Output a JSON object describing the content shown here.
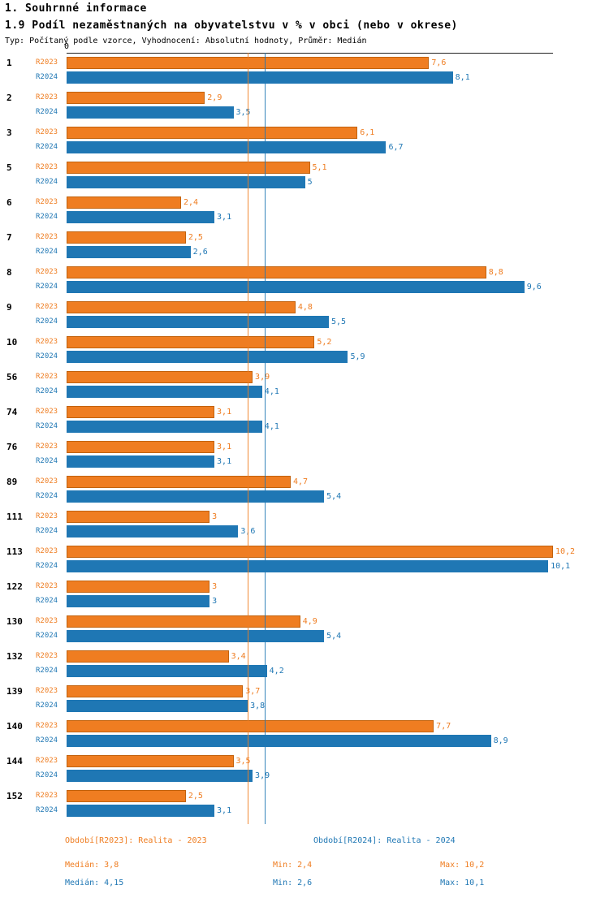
{
  "header": {
    "title": "1. Souhrnné informace",
    "subtitle": "1.9 Podíl nezaměstnaných na obyvatelstvu v % v obci (nebo v okrese)",
    "meta": "Typ: Počítaný podle vzorce, Vyhodnocení: Absolutní hodnoty, Průměr: Medián"
  },
  "chart_data": {
    "type": "bar",
    "orientation": "horizontal",
    "axis_zero_label": "0",
    "xlim": [
      0,
      10.2
    ],
    "grid": false,
    "legend_position": "bottom",
    "series_colors": {
      "R2023": "#EF7D21",
      "R2024": "#1F77B4"
    },
    "categories": [
      "1",
      "2",
      "3",
      "5",
      "6",
      "7",
      "8",
      "9",
      "10",
      "56",
      "74",
      "76",
      "89",
      "111",
      "113",
      "122",
      "130",
      "132",
      "139",
      "140",
      "144",
      "152"
    ],
    "series": [
      {
        "name": "R2023",
        "values": [
          7.6,
          2.9,
          6.1,
          5.1,
          2.4,
          2.5,
          8.8,
          4.8,
          5.2,
          3.9,
          3.1,
          3.1,
          4.7,
          3.0,
          10.2,
          3.0,
          4.9,
          3.4,
          3.7,
          7.7,
          3.5,
          2.5
        ],
        "labels": [
          "7,6",
          "2,9",
          "6,1",
          "5,1",
          "2,4",
          "2,5",
          "8,8",
          "4,8",
          "5,2",
          "3,9",
          "3,1",
          "3,1",
          "4,7",
          "3",
          "10,2",
          "3",
          "4,9",
          "3,4",
          "3,7",
          "7,7",
          "3,5",
          "2,5"
        ]
      },
      {
        "name": "R2024",
        "values": [
          8.1,
          3.5,
          6.7,
          5.0,
          3.1,
          2.6,
          9.6,
          5.5,
          5.9,
          4.1,
          4.1,
          3.1,
          5.4,
          3.6,
          10.1,
          3.0,
          5.4,
          4.2,
          3.8,
          8.9,
          3.9,
          3.1
        ],
        "labels": [
          "8,1",
          "3,5",
          "6,7",
          "5",
          "3,1",
          "2,6",
          "9,6",
          "5,5",
          "5,9",
          "4,1",
          "4,1",
          "3,1",
          "5,4",
          "3,6",
          "10,1",
          "3",
          "5,4",
          "4,2",
          "3,8",
          "8,9",
          "3,9",
          "3,1"
        ]
      }
    ],
    "median_lines": [
      {
        "series": "R2023",
        "value": 3.8,
        "color": "#EF7D21"
      },
      {
        "series": "R2024",
        "value": 4.15,
        "color": "#1F77B4"
      }
    ]
  },
  "legend": [
    {
      "label": "Období[R2023]: Realita - 2023",
      "color": "#EF7D21"
    },
    {
      "label": "Období[R2024]: Realita - 2024",
      "color": "#1F77B4"
    }
  ],
  "stats": [
    {
      "median": "Medián: 3,8",
      "min": "Min: 2,4",
      "max": "Max: 10,2",
      "color": "#EF7D21"
    },
    {
      "median": "Medián: 4,15",
      "min": "Min: 2,6",
      "max": "Max: 10,1",
      "color": "#1F77B4"
    }
  ]
}
